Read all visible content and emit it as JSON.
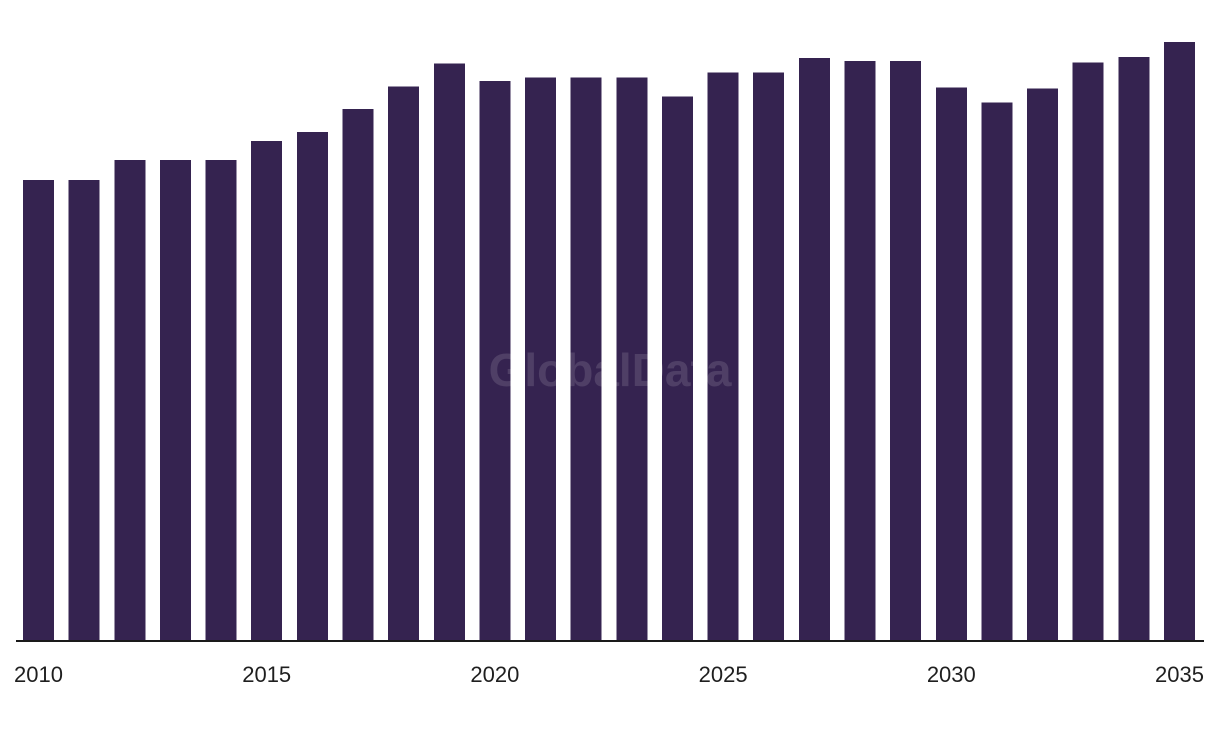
{
  "watermark": "GlobalData",
  "colors": {
    "bar": "#352350",
    "axis": "#1a1a1a",
    "text": "#1f1f1f",
    "background": "#ffffff"
  },
  "chart_data": {
    "type": "bar",
    "title": "",
    "xlabel": "",
    "ylabel": "",
    "x_tick_labels": [
      "2010",
      "2015",
      "2020",
      "2025",
      "2030",
      "2035"
    ],
    "categories": [
      "2010",
      "2011",
      "2012",
      "2013",
      "2014",
      "2015",
      "2016",
      "2017",
      "2018",
      "2019",
      "2020",
      "2021",
      "2022",
      "2023",
      "2024",
      "2025",
      "2026",
      "2027",
      "2028",
      "2029",
      "2030",
      "2031",
      "2032",
      "2033",
      "2034",
      "2035"
    ],
    "values": [
      77,
      77,
      80.3,
      80.3,
      80.3,
      83.5,
      85,
      88.8,
      92.6,
      96.4,
      93.5,
      94.1,
      94.1,
      94.1,
      90.9,
      94.9,
      94.9,
      97.3,
      96.8,
      96.8,
      92.4,
      89.9,
      92.2,
      96.6,
      97.5,
      100
    ],
    "ylim": [
      0,
      100
    ],
    "y_axis_visible": false,
    "grid": false,
    "legend": "none"
  }
}
